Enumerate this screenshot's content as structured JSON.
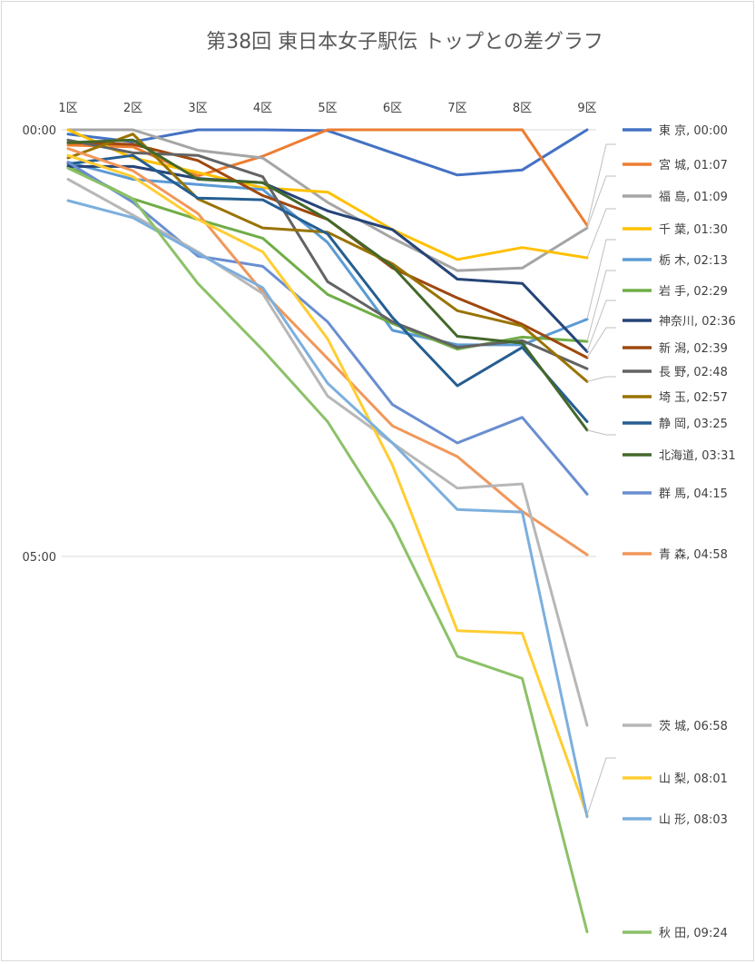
{
  "chart_data": {
    "type": "line",
    "title": "第38回 東日本女子駅伝 トップとの差グラフ",
    "categories": [
      "1区",
      "2区",
      "3区",
      "4区",
      "5区",
      "6区",
      "7区",
      "8区",
      "9区"
    ],
    "y_tick_labels": [
      "00:00",
      "05:00"
    ],
    "y_unit": "minutes behind leader",
    "ylim": [
      0,
      10
    ],
    "y_reversed": true,
    "grid": true,
    "legend_position": "right",
    "series": [
      {
        "name": "東 京",
        "final": "00:00",
        "color": "#4472C4",
        "values": [
          0.05,
          0.14,
          0.0,
          0.0,
          0.01,
          0.27,
          0.53,
          0.47,
          0.0
        ]
      },
      {
        "name": "宮 城",
        "final": "01:07",
        "color": "#ED7D31",
        "values": [
          0.18,
          0.2,
          0.54,
          0.31,
          0.0,
          0.0,
          0.0,
          0.0,
          1.12
        ]
      },
      {
        "name": "福 島",
        "final": "01:09",
        "color": "#A5A5A5",
        "values": [
          0.0,
          0.0,
          0.24,
          0.33,
          0.85,
          1.27,
          1.65,
          1.62,
          1.15
        ]
      },
      {
        "name": "千 葉",
        "final": "01:30",
        "color": "#FFC000",
        "values": [
          0.0,
          0.33,
          0.5,
          0.68,
          0.73,
          1.17,
          1.52,
          1.38,
          1.5
        ]
      },
      {
        "name": "栃 木",
        "final": "02:13",
        "color": "#5B9BD5",
        "values": [
          0.38,
          0.58,
          0.64,
          0.7,
          1.32,
          2.35,
          2.52,
          2.52,
          2.22
        ]
      },
      {
        "name": "岩 手",
        "final": "02:29",
        "color": "#70AD47",
        "values": [
          0.43,
          0.81,
          1.05,
          1.27,
          1.93,
          2.27,
          2.57,
          2.43,
          2.48
        ]
      },
      {
        "name": "神奈川",
        "final": "02:36",
        "color": "#264478",
        "values": [
          0.43,
          0.43,
          0.57,
          0.62,
          0.95,
          1.17,
          1.75,
          1.8,
          2.6
        ]
      },
      {
        "name": "新 潟",
        "final": "02:39",
        "color": "#9E480E",
        "values": [
          0.15,
          0.17,
          0.36,
          0.77,
          1.05,
          1.62,
          1.97,
          2.28,
          2.67
        ]
      },
      {
        "name": "長 野",
        "final": "02:48",
        "color": "#636363",
        "values": [
          0.12,
          0.27,
          0.3,
          0.55,
          1.78,
          2.25,
          2.55,
          2.47,
          2.8
        ]
      },
      {
        "name": "埼 玉",
        "final": "02:57",
        "color": "#997300",
        "values": [
          0.33,
          0.05,
          0.81,
          1.15,
          1.2,
          1.57,
          2.12,
          2.3,
          2.95
        ]
      },
      {
        "name": "静 岡",
        "final": "03:25",
        "color": "#255E91",
        "values": [
          0.4,
          0.3,
          0.8,
          0.82,
          1.22,
          2.2,
          3.0,
          2.55,
          3.42
        ]
      },
      {
        "name": "北海道",
        "final": "03:31",
        "color": "#43682B",
        "values": [
          0.15,
          0.12,
          0.58,
          0.62,
          1.05,
          1.6,
          2.42,
          2.5,
          3.52
        ]
      },
      {
        "name": "群 馬",
        "final": "04:15",
        "color": "#698ED0",
        "values": [
          0.38,
          0.85,
          1.48,
          1.6,
          2.25,
          3.22,
          3.67,
          3.37,
          4.27
        ]
      },
      {
        "name": "青 森",
        "final": "04:58",
        "color": "#F1975A",
        "values": [
          0.22,
          0.48,
          0.98,
          1.9,
          2.68,
          3.47,
          3.83,
          4.47,
          4.98
        ]
      },
      {
        "name": "茨 城",
        "final": "06:58",
        "color": "#B7B7B7",
        "values": [
          0.58,
          1.0,
          1.43,
          1.92,
          3.12,
          3.67,
          4.2,
          4.15,
          6.98
        ]
      },
      {
        "name": "山 梨",
        "final": "08:01",
        "color": "#FFCD33",
        "values": [
          0.3,
          0.55,
          1.05,
          1.43,
          2.45,
          3.93,
          5.87,
          5.9,
          8.03
        ]
      },
      {
        "name": "山 形",
        "final": "08:03",
        "color": "#7CAFDD",
        "values": [
          0.83,
          1.03,
          1.45,
          1.85,
          2.97,
          3.67,
          4.45,
          4.48,
          8.05
        ]
      },
      {
        "name": "秋 田",
        "final": "09:24",
        "color": "#8CC168",
        "values": [
          0.45,
          0.81,
          1.8,
          2.58,
          3.42,
          4.62,
          6.17,
          6.43,
          9.4
        ]
      }
    ]
  }
}
